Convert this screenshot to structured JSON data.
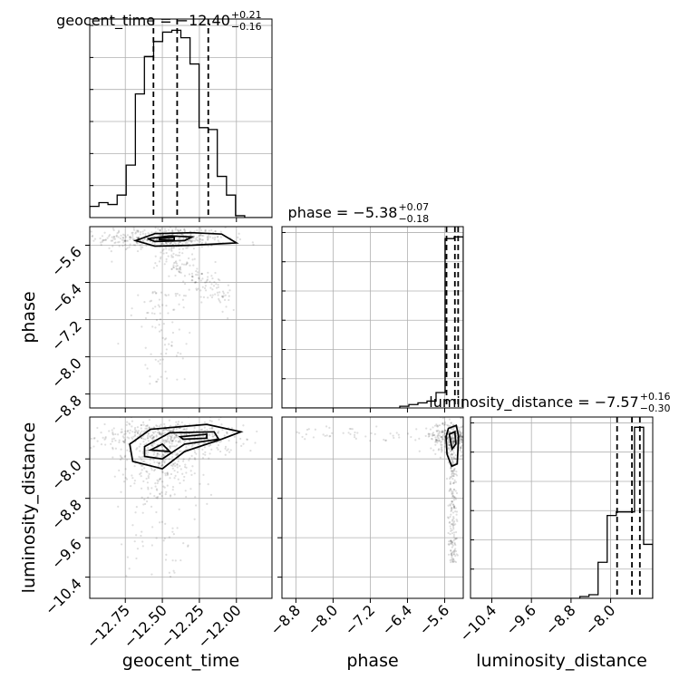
{
  "chart_data": {
    "type": "corner",
    "parameters": [
      "geocent_time",
      "phase",
      "luminosity_distance"
    ],
    "titles": [
      {
        "param": "geocent_time",
        "label": "geocent_time = ",
        "median": "−12.40",
        "plus": "+0.21",
        "minus": "−0.16"
      },
      {
        "param": "phase",
        "label": "phase = ",
        "median": "−5.38",
        "plus": "+0.07",
        "minus": "−0.18"
      },
      {
        "param": "luminosity_distance",
        "label": "luminosity_distance = ",
        "median": "−7.57",
        "plus": "+0.16",
        "minus": "−0.30"
      }
    ],
    "axes": {
      "geocent_time": {
        "range": [
          -12.99,
          -11.76
        ],
        "ticks": [
          -12.75,
          -12.5,
          -12.25,
          -12.0
        ],
        "tick_labels": [
          "−12.75",
          "−12.50",
          "−12.25",
          "−12.00"
        ],
        "xlabel": "geocent_time"
      },
      "phase": {
        "range": [
          -9.1,
          -5.2
        ],
        "ticks": [
          -8.8,
          -8.0,
          -7.2,
          -6.4,
          -5.6
        ],
        "tick_labels": [
          "−8.8",
          "−8.0",
          "−7.2",
          "−6.4",
          "−5.6"
        ],
        "xlabel": "phase",
        "ylabel": "phase"
      },
      "luminosity_distance": {
        "range": [
          -10.83,
          -7.15
        ],
        "ticks": [
          -10.4,
          -9.6,
          -8.8,
          -8.0
        ],
        "tick_labels": [
          "−10.4",
          "−9.6",
          "−8.8",
          "−8.0"
        ],
        "xlabel": "luminosity_distance",
        "ylabel": "luminosity_distance"
      }
    },
    "histograms": {
      "geocent_time": {
        "bin_edges": [
          -12.99,
          -12.928,
          -12.867,
          -12.805,
          -12.744,
          -12.682,
          -12.621,
          -12.559,
          -12.498,
          -12.436,
          -12.375,
          -12.313,
          -12.252,
          -12.19,
          -12.129,
          -12.067,
          -12.006,
          -11.944,
          -11.883,
          -11.821,
          -11.76
        ],
        "counts": [
          6,
          8,
          7,
          12,
          28,
          66,
          86,
          94,
          99,
          100,
          96,
          82,
          48,
          47,
          22,
          12,
          1,
          0,
          0,
          0
        ],
        "quantiles": [
          -12.56,
          -12.4,
          -12.19
        ]
      },
      "phase": {
        "bin_edges": [
          -9.1,
          -8.905,
          -8.71,
          -8.515,
          -8.32,
          -8.125,
          -7.93,
          -7.735,
          -7.54,
          -7.345,
          -7.15,
          -6.955,
          -6.76,
          -6.565,
          -6.37,
          -6.175,
          -5.98,
          -5.785,
          -5.59,
          -5.395,
          -5.2
        ],
        "counts": [
          0,
          0,
          0,
          0,
          0,
          0,
          0,
          0,
          0,
          0,
          0,
          0,
          0,
          1,
          2,
          3,
          4,
          9,
          99,
          100
        ],
        "quantiles": [
          -5.56,
          -5.38,
          -5.31
        ]
      },
      "luminosity_distance": {
        "bin_edges": [
          -10.83,
          -10.646,
          -10.462,
          -10.278,
          -10.094,
          -9.91,
          -9.726,
          -9.542,
          -9.358,
          -9.174,
          -8.99,
          -8.806,
          -8.622,
          -8.438,
          -8.254,
          -8.07,
          -7.886,
          -7.702,
          -7.518,
          -7.334,
          -7.15
        ],
        "counts": [
          0,
          0,
          0,
          0,
          0,
          0,
          0,
          0,
          0,
          0,
          0,
          0,
          1,
          2,
          20,
          46,
          48,
          48,
          95,
          30
        ],
        "quantiles": [
          -7.87,
          -7.57,
          -7.41
        ]
      }
    },
    "grid": true
  }
}
